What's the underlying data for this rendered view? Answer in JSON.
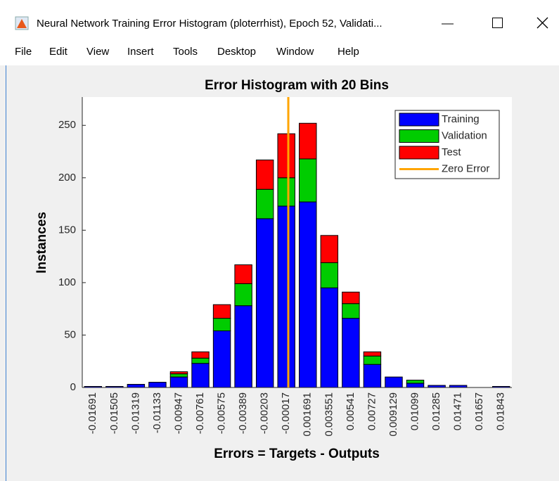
{
  "window": {
    "title": "Neural Network Training Error Histogram (ploterrhist), Epoch 52, Validati...",
    "menu": [
      "File",
      "Edit",
      "View",
      "Insert",
      "Tools",
      "Desktop",
      "Window",
      "Help"
    ]
  },
  "chart_data": {
    "type": "bar",
    "stacked": true,
    "title": "Error Histogram with 20 Bins",
    "x_label": "Errors = Targets - Outputs",
    "y_label": "Instances",
    "categories": [
      -0.01691,
      -0.01505,
      -0.01319,
      -0.01133,
      -0.00947,
      -0.00761,
      -0.00575,
      -0.00389,
      -0.00203,
      -0.00017,
      0.001691,
      0.003551,
      0.00541,
      0.00727,
      0.009129,
      0.01099,
      0.01285,
      0.01471,
      0.01657,
      0.01843
    ],
    "series": [
      {
        "name": "Training",
        "color": "#0000ff",
        "values": [
          1,
          1,
          3,
          5,
          10,
          23,
          54,
          78,
          161,
          173,
          177,
          95,
          66,
          22,
          10,
          4,
          2,
          2,
          0,
          1
        ]
      },
      {
        "name": "Validation",
        "color": "#00cc00",
        "values": [
          0,
          0,
          0,
          0,
          3,
          5,
          12,
          21,
          28,
          27,
          41,
          24,
          14,
          8,
          0,
          3,
          0,
          0,
          0,
          0
        ]
      },
      {
        "name": "Test",
        "color": "#ff0000",
        "values": [
          0,
          0,
          0,
          0,
          2,
          6,
          13,
          18,
          28,
          42,
          34,
          26,
          11,
          4,
          0,
          0,
          0,
          0,
          0,
          0
        ]
      }
    ],
    "zero_line": {
      "name": "Zero Error",
      "x": 0,
      "color": "#ffa500"
    },
    "ylim": [
      0,
      277
    ],
    "yticks": [
      0,
      50,
      100,
      150,
      200,
      250
    ],
    "legend": "upper right"
  }
}
